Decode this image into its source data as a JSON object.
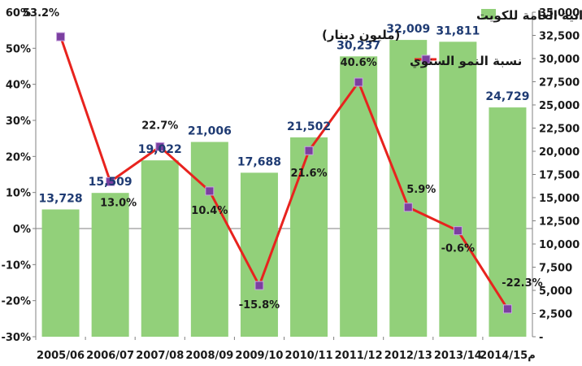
{
  "chart_data": {
    "type": "bar",
    "categories": [
      "2005/06",
      "2006/07",
      "2007/08",
      "2008/09",
      "2009/10",
      "2010/11",
      "2011/12",
      "2012/13",
      "2013/14",
      "2014/15م"
    ],
    "series": [
      {
        "name": "جملة الايرادات في الميزانية العامة للكويت",
        "type": "bar",
        "axis": "right",
        "color": "#92d07a",
        "values": [
          13728,
          15509,
          19022,
          21006,
          17688,
          21502,
          30237,
          32009,
          31811,
          24729
        ],
        "value_labels": [
          "13,728",
          "15,509",
          "19,022",
          "21,006",
          "17,688",
          "21,502",
          "30,237",
          "32,009",
          "31,811",
          "24,729"
        ]
      },
      {
        "name": "نسبة النمو السنوي",
        "type": "line",
        "axis": "left",
        "color": "#e8231e",
        "marker_color": "#7b3fa0",
        "values": [
          53.2,
          13.0,
          22.7,
          10.4,
          -15.8,
          21.6,
          40.6,
          5.9,
          -0.6,
          -22.3
        ],
        "value_labels": [
          "53.2%",
          "13.0%",
          "22.7%",
          "10.4%",
          "-15.8%",
          "21.6%",
          "40.6%",
          "5.9%",
          "-0.6%",
          "-22.3%"
        ]
      }
    ],
    "legend": {
      "bar_label": "جملة الايرادات في الميزانية العامة للكويت",
      "bar_sublabel": "(مليون دينار)",
      "line_label": "نسبة النمو السنوي",
      "placement": "top-center"
    },
    "left_axis": {
      "min": -30,
      "max": 60,
      "step": 10,
      "ticks": [
        "60%",
        "50%",
        "40%",
        "30%",
        "20%",
        "10%",
        "0%",
        "-10%",
        "-20%",
        "-30%"
      ]
    },
    "right_axis": {
      "min": 0,
      "max": 35000,
      "step": 2500,
      "ticks": [
        "35,000",
        "32,500",
        "30,000",
        "27,500",
        "25,000",
        "22,500",
        "20,000",
        "17,500",
        "15,000",
        "12,500",
        "10,000",
        "7,500",
        "5,000",
        "2,500",
        "-"
      ]
    },
    "grid": false,
    "title": "",
    "xlabel": "",
    "ylabel": ""
  }
}
